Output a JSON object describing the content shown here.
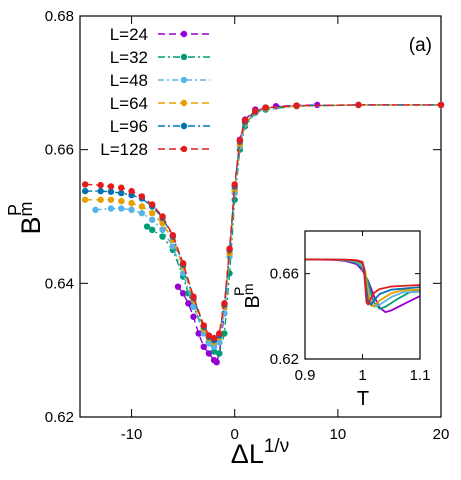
{
  "chart_data": [
    {
      "type": "line",
      "panel_label": "(a)",
      "xlabel": "ΔL",
      "xlabel_sup": "1/ν",
      "ylabel": "B",
      "ylabel_sub": "m",
      "ylabel_sup": "P",
      "xlim": [
        -15,
        20
      ],
      "ylim": [
        0.62,
        0.68
      ],
      "xticks": [
        "-10",
        "0",
        "10",
        "20"
      ],
      "yticks": [
        "0.62",
        "0.64",
        "0.66",
        "0.68"
      ],
      "legend_position": "top-left",
      "series": [
        {
          "name": "L=24",
          "color": "#9400d3",
          "x": [
            -5.5,
            -5.0,
            -4.5,
            -4.0,
            -3.5,
            -3.0,
            -2.5,
            -2.0,
            -1.75,
            -1.5,
            -1.0,
            -0.5,
            0.0,
            0.5,
            1.0,
            2.0,
            4.0,
            8.0
          ],
          "y": [
            0.6395,
            0.6385,
            0.637,
            0.635,
            0.6325,
            0.6305,
            0.6295,
            0.6285,
            0.6282,
            0.6295,
            0.6355,
            0.645,
            0.654,
            0.6615,
            0.6645,
            0.666,
            0.6665,
            0.6667
          ]
        },
        {
          "name": "L=32",
          "color": "#009e73",
          "x": [
            -8.5,
            -8.0,
            -7.0,
            -6.0,
            -5.0,
            -4.5,
            -4.0,
            -3.0,
            -2.5,
            -2.0,
            -1.5,
            -1.0,
            -0.5,
            0.0,
            0.5,
            1.0,
            2.0,
            3.0,
            6.0,
            12.0,
            20.0
          ],
          "y": [
            0.6485,
            0.648,
            0.647,
            0.645,
            0.641,
            0.6385,
            0.6365,
            0.633,
            0.6312,
            0.6298,
            0.6295,
            0.6325,
            0.6415,
            0.6525,
            0.66,
            0.6635,
            0.6655,
            0.666,
            0.6665,
            0.6667,
            0.6667
          ]
        },
        {
          "name": "L=48",
          "color": "#56b4e9",
          "x": [
            -13.5,
            -12.0,
            -11.0,
            -10.0,
            -9.0,
            -8.0,
            -7.0,
            -6.0,
            -5.0,
            -4.0,
            -3.0,
            -2.5,
            -2.0,
            -1.5,
            -1.0,
            -0.5,
            0.0,
            0.5,
            1.0,
            2.0,
            3.0,
            6.0,
            12.0,
            20.0
          ],
          "y": [
            0.651,
            0.6512,
            0.6512,
            0.651,
            0.6505,
            0.6495,
            0.648,
            0.6455,
            0.6415,
            0.6365,
            0.6325,
            0.631,
            0.6305,
            0.6312,
            0.6355,
            0.644,
            0.6535,
            0.6605,
            0.6638,
            0.6655,
            0.6662,
            0.6665,
            0.6667,
            0.6667
          ]
        },
        {
          "name": "L=64",
          "color": "#e69f00",
          "x": [
            -14.5,
            -13.0,
            -12.0,
            -11.0,
            -10.0,
            -9.0,
            -8.0,
            -7.0,
            -6.0,
            -5.0,
            -4.0,
            -3.0,
            -2.5,
            -2.0,
            -1.5,
            -1.0,
            -0.5,
            0.0,
            0.5,
            1.0,
            2.0,
            3.0,
            6.0,
            12.0,
            20.0
          ],
          "y": [
            0.6525,
            0.6525,
            0.6525,
            0.6523,
            0.652,
            0.6515,
            0.6505,
            0.649,
            0.6465,
            0.6425,
            0.6375,
            0.6332,
            0.6318,
            0.6312,
            0.632,
            0.6365,
            0.6445,
            0.654,
            0.6608,
            0.664,
            0.6656,
            0.6662,
            0.6665,
            0.6667,
            0.6667
          ]
        },
        {
          "name": "L=96",
          "color": "#0072b2",
          "x": [
            -14.5,
            -13.0,
            -12.0,
            -11.0,
            -10.0,
            -9.0,
            -8.0,
            -7.0,
            -6.0,
            -5.0,
            -4.0,
            -3.0,
            -2.5,
            -2.0,
            -1.5,
            -1.0,
            -0.5,
            0.0,
            0.5,
            1.0,
            2.0,
            3.0,
            6.0,
            12.0,
            20.0
          ],
          "y": [
            0.6538,
            0.6538,
            0.6537,
            0.6535,
            0.6532,
            0.6527,
            0.6515,
            0.6498,
            0.647,
            0.6428,
            0.6378,
            0.6335,
            0.632,
            0.6315,
            0.6322,
            0.6368,
            0.645,
            0.6545,
            0.6612,
            0.6642,
            0.6657,
            0.6663,
            0.6666,
            0.6667,
            0.6667
          ]
        },
        {
          "name": "L=128",
          "color": "#e41a1c",
          "x": [
            -14.5,
            -13.0,
            -12.0,
            -11.0,
            -10.0,
            -9.0,
            -8.0,
            -7.0,
            -6.0,
            -5.0,
            -4.0,
            -3.0,
            -2.5,
            -2.0,
            -1.5,
            -1.0,
            -0.5,
            0.0,
            0.5,
            1.0,
            2.0,
            3.0,
            6.0,
            12.0,
            20.0
          ],
          "y": [
            0.6548,
            0.6547,
            0.6545,
            0.6543,
            0.6538,
            0.653,
            0.6518,
            0.65,
            0.6472,
            0.643,
            0.638,
            0.6337,
            0.6322,
            0.6318,
            0.6325,
            0.637,
            0.6452,
            0.6548,
            0.6614,
            0.6644,
            0.6658,
            0.6663,
            0.6666,
            0.6667,
            0.6667
          ]
        }
      ]
    },
    {
      "type": "line",
      "role": "inset",
      "xlabel": "T",
      "ylabel": "B",
      "ylabel_sub": "m",
      "ylabel_sup": "P",
      "xlim": [
        0.9,
        1.1
      ],
      "ylim": [
        0.62,
        0.68
      ],
      "xticks": [
        "0.9",
        "1",
        "1.1"
      ],
      "yticks": [
        "0.62",
        "0.66"
      ],
      "series": [
        {
          "name": "L=24",
          "color": "#9400d3",
          "x": [
            0.9,
            0.95,
            0.97,
            0.99,
            1.0,
            1.01,
            1.02,
            1.03,
            1.04,
            1.05,
            1.07,
            1.1
          ],
          "y": [
            0.6667,
            0.6665,
            0.666,
            0.6645,
            0.6615,
            0.6565,
            0.6495,
            0.644,
            0.642,
            0.6428,
            0.6455,
            0.6495
          ]
        },
        {
          "name": "L=32",
          "color": "#009e73",
          "x": [
            0.9,
            0.95,
            0.97,
            0.99,
            1.0,
            1.01,
            1.015,
            1.02,
            1.03,
            1.04,
            1.06,
            1.08,
            1.1
          ],
          "y": [
            0.6667,
            0.6666,
            0.6663,
            0.665,
            0.6625,
            0.656,
            0.6505,
            0.6465,
            0.6435,
            0.6445,
            0.648,
            0.651,
            0.6525
          ]
        },
        {
          "name": "L=48",
          "color": "#56b4e9",
          "x": [
            0.9,
            0.95,
            0.97,
            0.99,
            1.0,
            1.005,
            1.01,
            1.015,
            1.02,
            1.03,
            1.05,
            1.07,
            1.1
          ],
          "y": [
            0.6667,
            0.6666,
            0.6664,
            0.6655,
            0.6635,
            0.659,
            0.652,
            0.6465,
            0.6445,
            0.6455,
            0.649,
            0.6512,
            0.6515
          ]
        },
        {
          "name": "L=64",
          "color": "#e69f00",
          "x": [
            0.9,
            0.95,
            0.97,
            0.99,
            1.0,
            1.005,
            1.01,
            1.015,
            1.02,
            1.03,
            1.05,
            1.07,
            1.1
          ],
          "y": [
            0.6667,
            0.6666,
            0.6665,
            0.6658,
            0.6645,
            0.661,
            0.6505,
            0.645,
            0.6448,
            0.6475,
            0.6508,
            0.6522,
            0.6525
          ]
        },
        {
          "name": "L=96",
          "color": "#0072b2",
          "x": [
            0.9,
            0.95,
            0.97,
            0.99,
            1.0,
            1.003,
            1.006,
            1.01,
            1.015,
            1.02,
            1.03,
            1.05,
            1.1
          ],
          "y": [
            0.6667,
            0.6666,
            0.6665,
            0.6661,
            0.665,
            0.6625,
            0.6545,
            0.6465,
            0.6455,
            0.6475,
            0.6505,
            0.6525,
            0.6537
          ]
        },
        {
          "name": "L=128",
          "color": "#e41a1c",
          "x": [
            0.9,
            0.95,
            0.97,
            0.99,
            1.0,
            1.002,
            1.004,
            1.007,
            1.01,
            1.015,
            1.02,
            1.03,
            1.05,
            1.1
          ],
          "y": [
            0.6667,
            0.6666,
            0.6666,
            0.6663,
            0.6655,
            0.6635,
            0.6565,
            0.6465,
            0.6455,
            0.6485,
            0.651,
            0.6528,
            0.654,
            0.6547
          ]
        }
      ]
    }
  ]
}
